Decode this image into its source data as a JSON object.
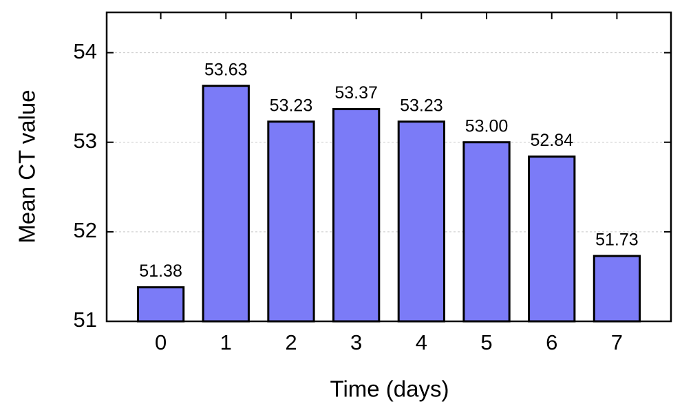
{
  "chart_data": {
    "type": "bar",
    "x_label": "Time (days)",
    "y_label": "Mean CT value",
    "x": [
      0,
      1,
      2,
      3,
      4,
      5,
      6,
      7
    ],
    "values": [
      51.38,
      53.63,
      53.23,
      53.37,
      53.23,
      53.0,
      52.84,
      51.73
    ],
    "value_labels": [
      "51.38",
      "53.63",
      "53.23",
      "53.37",
      "53.23",
      "53.00",
      "52.84",
      "51.73"
    ],
    "color": "#7b7bf7",
    "xlim": [
      -0.83,
      7.83
    ],
    "xticks": [
      0,
      1,
      2,
      3,
      4,
      5,
      6,
      7
    ],
    "ylim": [
      51,
      54.45
    ],
    "yticks": [
      51,
      52,
      53,
      54
    ],
    "grid": true
  }
}
